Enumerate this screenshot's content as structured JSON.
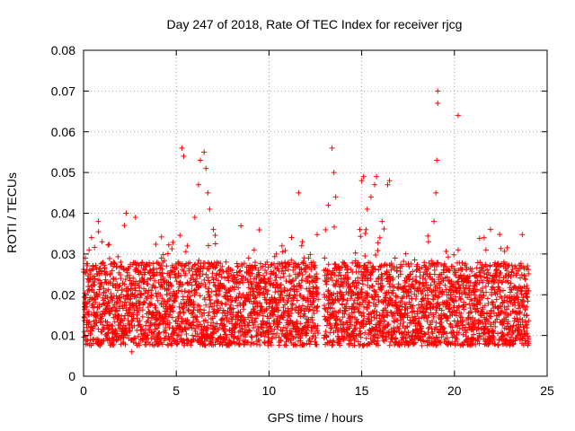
{
  "chart_data": {
    "type": "scatter",
    "title": "Day 247 of 2018, Rate Of TEC Index for receiver rjcg",
    "xlabel": "GPS time / hours",
    "ylabel": "ROTI / TECUs",
    "xlim": [
      0,
      25
    ],
    "ylim": [
      0,
      0.08
    ],
    "xticks": [
      0,
      5,
      10,
      15,
      20,
      25
    ],
    "xtick_labels": [
      "0",
      "5",
      "10",
      "15",
      "20",
      "25"
    ],
    "yticks": [
      0,
      0.01,
      0.02,
      0.03,
      0.04,
      0.05,
      0.06,
      0.07,
      0.08
    ],
    "ytick_labels": [
      "0",
      "0.01",
      "0.02",
      "0.03",
      "0.04",
      "0.05",
      "0.06",
      "0.07",
      "0.08"
    ],
    "grid": true,
    "marker": "+",
    "series": [
      {
        "name": "ROTI",
        "color": "#ff0000",
        "x_range": [
          0,
          24
        ],
        "points": [
          [
            0.1,
            0.029
          ],
          [
            0.2,
            0.018
          ],
          [
            0.3,
            0.031
          ],
          [
            0.4,
            0.012
          ],
          [
            0.5,
            0.027
          ],
          [
            0.6,
            0.015
          ],
          [
            0.8,
            0.038
          ],
          [
            0.9,
            0.022
          ],
          [
            1.0,
            0.033
          ],
          [
            1.2,
            0.016
          ],
          [
            1.4,
            0.009
          ],
          [
            1.6,
            0.024
          ],
          [
            1.8,
            0.019
          ],
          [
            2.0,
            0.028
          ],
          [
            2.2,
            0.037
          ],
          [
            2.3,
            0.04
          ],
          [
            2.4,
            0.021
          ],
          [
            2.6,
            0.006
          ],
          [
            2.8,
            0.039
          ],
          [
            3.0,
            0.025
          ],
          [
            3.3,
            0.018
          ],
          [
            3.6,
            0.026
          ],
          [
            3.9,
            0.015
          ],
          [
            4.2,
            0.029
          ],
          [
            4.5,
            0.02
          ],
          [
            4.8,
            0.017
          ],
          [
            5.1,
            0.028
          ],
          [
            5.3,
            0.056
          ],
          [
            5.4,
            0.054
          ],
          [
            5.6,
            0.032
          ],
          [
            5.8,
            0.024
          ],
          [
            6.0,
            0.039
          ],
          [
            6.2,
            0.047
          ],
          [
            6.3,
            0.053
          ],
          [
            6.5,
            0.055
          ],
          [
            6.6,
            0.051
          ],
          [
            6.7,
            0.045
          ],
          [
            6.8,
            0.041
          ],
          [
            7.0,
            0.036
          ],
          [
            7.2,
            0.028
          ],
          [
            7.5,
            0.022
          ],
          [
            7.8,
            0.019
          ],
          [
            8.0,
            0.026
          ],
          [
            8.3,
            0.014
          ],
          [
            8.6,
            0.02
          ],
          [
            8.9,
            0.029
          ],
          [
            9.2,
            0.031
          ],
          [
            9.5,
            0.018
          ],
          [
            9.8,
            0.023
          ],
          [
            10.1,
            0.015
          ],
          [
            10.4,
            0.03
          ],
          [
            10.7,
            0.032
          ],
          [
            11.0,
            0.021
          ],
          [
            11.3,
            0.026
          ],
          [
            11.6,
            0.045
          ],
          [
            11.8,
            0.033
          ],
          [
            12.1,
            0.019
          ],
          [
            12.4,
            0.028
          ],
          [
            12.6,
            0.017
          ],
          [
            13.0,
            0.029
          ],
          [
            13.2,
            0.042
          ],
          [
            13.4,
            0.056
          ],
          [
            13.5,
            0.05
          ],
          [
            13.6,
            0.044
          ],
          [
            13.8,
            0.026
          ],
          [
            14.0,
            0.02
          ],
          [
            14.3,
            0.015
          ],
          [
            14.6,
            0.022
          ],
          [
            14.9,
            0.036
          ],
          [
            15.0,
            0.048
          ],
          [
            15.1,
            0.049
          ],
          [
            15.3,
            0.041
          ],
          [
            15.5,
            0.044
          ],
          [
            15.7,
            0.047
          ],
          [
            15.8,
            0.049
          ],
          [
            16.1,
            0.038
          ],
          [
            16.4,
            0.047
          ],
          [
            16.5,
            0.048
          ],
          [
            16.8,
            0.029
          ],
          [
            17.1,
            0.025
          ],
          [
            17.4,
            0.021
          ],
          [
            17.7,
            0.019
          ],
          [
            18.0,
            0.027
          ],
          [
            18.3,
            0.024
          ],
          [
            18.6,
            0.033
          ],
          [
            18.9,
            0.038
          ],
          [
            19.0,
            0.045
          ],
          [
            19.05,
            0.053
          ],
          [
            19.1,
            0.07
          ],
          [
            19.1,
            0.067
          ],
          [
            19.3,
            0.025
          ],
          [
            19.6,
            0.02
          ],
          [
            19.9,
            0.022
          ],
          [
            20.2,
            0.064
          ],
          [
            20.2,
            0.031
          ],
          [
            20.5,
            0.017
          ],
          [
            20.8,
            0.012
          ],
          [
            21.1,
            0.019
          ],
          [
            21.4,
            0.015
          ],
          [
            21.6,
            0.034
          ],
          [
            21.7,
            0.031
          ],
          [
            21.7,
            0.027
          ],
          [
            22.0,
            0.02
          ],
          [
            22.3,
            0.014
          ],
          [
            22.6,
            0.018
          ],
          [
            22.9,
            0.023
          ],
          [
            23.2,
            0.016
          ],
          [
            23.5,
            0.012
          ],
          [
            23.8,
            0.024
          ],
          [
            23.9,
            0.017
          ]
        ]
      }
    ]
  }
}
